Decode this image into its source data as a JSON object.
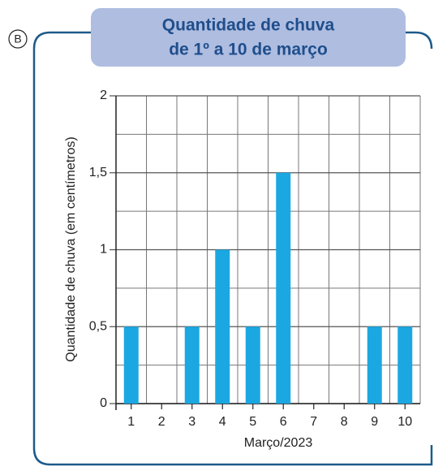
{
  "chart_data": {
    "type": "bar",
    "label": "B",
    "title": [
      "Quantidade de chuva",
      "de 1º a 10 de março"
    ],
    "x_label": "Março/2023",
    "y_label": "Quantidade de chuva (em centímetros)",
    "categories": [
      "1",
      "2",
      "3",
      "4",
      "5",
      "6",
      "7",
      "8",
      "9",
      "10"
    ],
    "values": [
      0.5,
      0,
      0.5,
      1,
      0.5,
      1.5,
      0,
      0,
      0.5,
      0.5
    ],
    "color": "#1ba8e2",
    "ylim": [
      0,
      2
    ],
    "yticks": [
      0,
      {
        "value": 0.5,
        "label": "0,5"
      },
      1,
      {
        "value": 1.5,
        "label": "1,5"
      },
      2
    ],
    "minor_grid": [
      0.25,
      0.75,
      1.25,
      1.75
    ],
    "grid": true
  }
}
